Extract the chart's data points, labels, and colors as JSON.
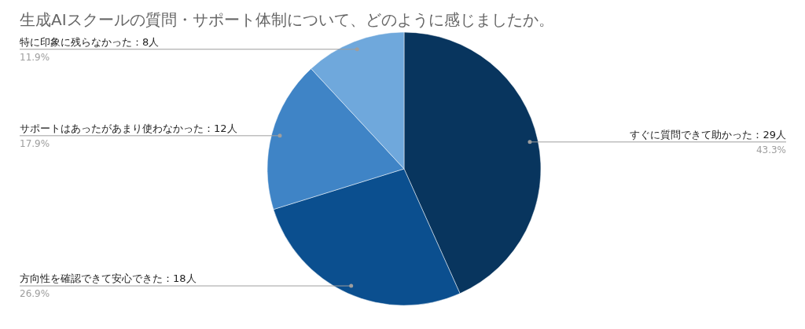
{
  "chart_data": {
    "type": "pie",
    "title": "生成AIスクールの質問・サポート体制について、どのように感じましたか。",
    "categories": [
      "すぐに質問できて助かった：29人",
      "方向性を確認できて安心できた：18人",
      "サポートはあったがあまり使わなかった：12人",
      "特に印象に残らなかった：8人"
    ],
    "values": [
      43.3,
      26.9,
      17.9,
      11.9
    ],
    "colors": [
      "#08355e",
      "#0b4f8f",
      "#3f84c6",
      "#6fa8dc"
    ],
    "value_labels": [
      "43.3%",
      "26.9%",
      "17.9%",
      "11.9%"
    ]
  }
}
